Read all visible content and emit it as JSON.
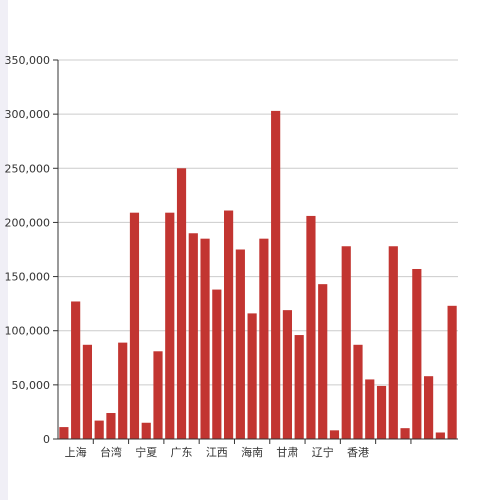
{
  "chart_data": {
    "type": "bar",
    "title": "",
    "xlabel": "",
    "ylabel": "",
    "ylim": [
      0,
      350000
    ],
    "yticks": [
      "0",
      "50,000",
      "100,000",
      "150,000",
      "200,000",
      "250,000",
      "300,000",
      "350,000"
    ],
    "ytick_values": [
      0,
      50000,
      100000,
      150000,
      200000,
      250000,
      300000,
      350000
    ],
    "grid": true,
    "legend": "none",
    "bar_color": "#c23531",
    "categories": [
      "",
      "上海",
      "",
      "",
      "台湾",
      "",
      "",
      "宁夏",
      "",
      "",
      "广东",
      "",
      "",
      "江西",
      "",
      "",
      "海南",
      "",
      "",
      "甘肃",
      "",
      "",
      "辽宁",
      "",
      "",
      "香港",
      "",
      "",
      "",
      "",
      "",
      "",
      "",
      ""
    ],
    "visible_category_labels": [
      "上海",
      "台湾",
      "宁夏",
      "广东",
      "江西",
      "海南",
      "甘肃",
      "辽宁",
      "香港"
    ],
    "values": [
      11000,
      127000,
      87000,
      17000,
      24000,
      89000,
      209000,
      15000,
      81000,
      209000,
      250000,
      190000,
      185000,
      138000,
      211000,
      175000,
      116000,
      185000,
      303000,
      119000,
      96000,
      206000,
      143000,
      8000,
      178000,
      87000,
      55000,
      49000,
      178000,
      10000,
      157000,
      58000,
      6000,
      123000
    ]
  }
}
